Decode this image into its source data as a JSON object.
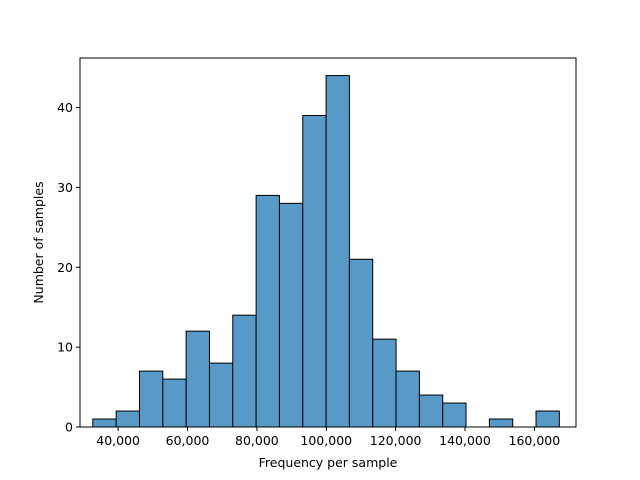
{
  "chart_data": {
    "type": "bar",
    "subtype": "histogram",
    "xlabel": "Frequency per sample",
    "ylabel": "Number of samples",
    "xlim": [
      29000,
      172000
    ],
    "ylim": [
      0,
      46.2
    ],
    "bin_start": 32700,
    "bin_width": 6725,
    "bin_counts": [
      1,
      2,
      7,
      6,
      12,
      8,
      14,
      29,
      28,
      39,
      44,
      21,
      11,
      7,
      4,
      3,
      0,
      1,
      0,
      2
    ],
    "xticks": [
      40000,
      60000,
      80000,
      100000,
      120000,
      140000,
      160000
    ],
    "xtick_labels": [
      "40,000",
      "60,000",
      "80,000",
      "100,000",
      "120,000",
      "140,000",
      "160,000"
    ],
    "yticks": [
      0,
      10,
      20,
      30,
      40
    ],
    "ytick_labels": [
      "0",
      "10",
      "20",
      "30",
      "40"
    ],
    "bar_color": "#5799c7",
    "edge_color": "#000000",
    "grid": false,
    "legend": "none"
  }
}
